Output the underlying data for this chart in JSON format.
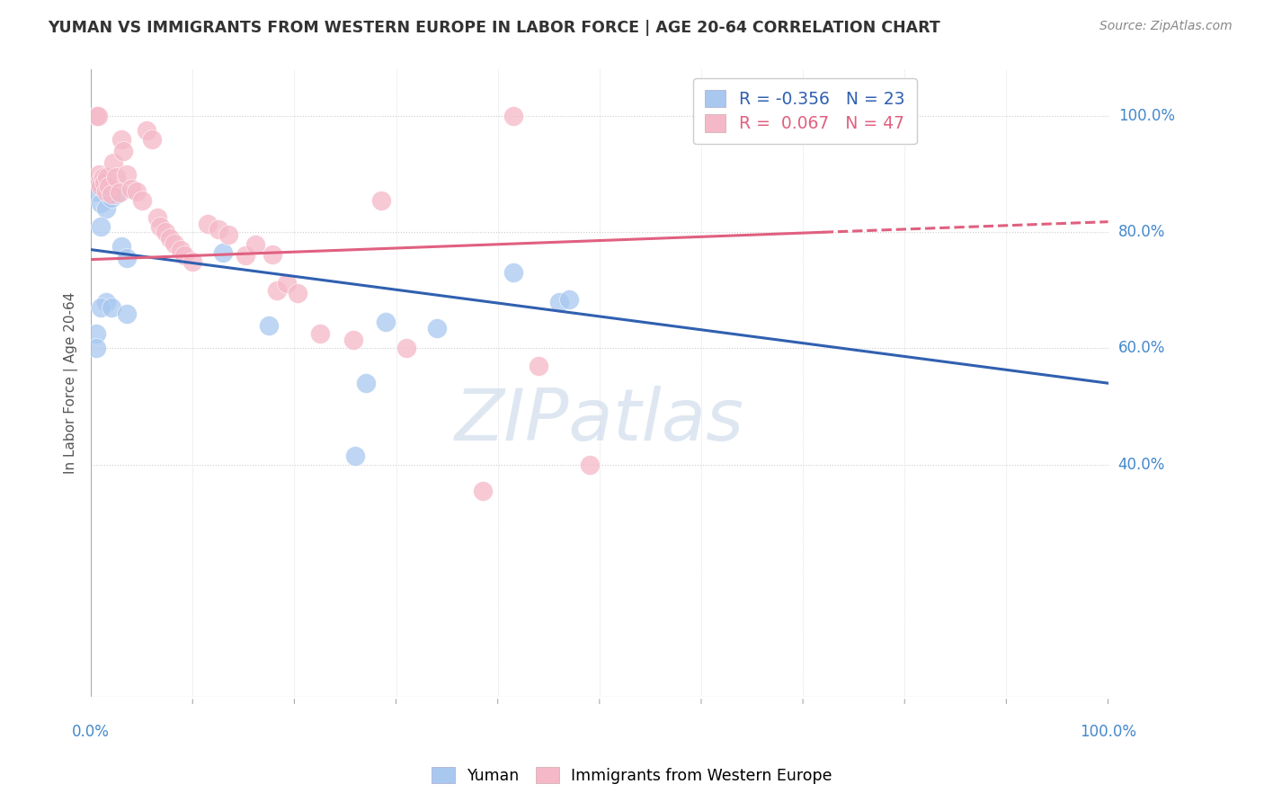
{
  "title": "YUMAN VS IMMIGRANTS FROM WESTERN EUROPE IN LABOR FORCE | AGE 20-64 CORRELATION CHART",
  "source": "Source: ZipAtlas.com",
  "ylabel": "In Labor Force | Age 20-64",
  "xlim": [
    0.0,
    1.0
  ],
  "ylim": [
    0.0,
    1.08
  ],
  "background_color": "#ffffff",
  "grid_color": "#cccccc",
  "watermark": "ZIPatlas",
  "legend_r_blue": "-0.356",
  "legend_n_blue": "23",
  "legend_r_pink": "0.067",
  "legend_n_pink": "47",
  "blue_color": "#a8c8f0",
  "pink_color": "#f5b8c8",
  "blue_line_color": "#3060b0",
  "pink_line_color": "#e06080",
  "blue_scatter_x": [
    0.005,
    0.01,
    0.015,
    0.02,
    0.025,
    0.01,
    0.015,
    0.005,
    0.005,
    0.01,
    0.02,
    0.03,
    0.035,
    0.035,
    0.13,
    0.175,
    0.26,
    0.29,
    0.34,
    0.415,
    0.46,
    0.47,
    0.27
  ],
  "blue_scatter_y": [
    0.87,
    0.85,
    0.84,
    0.86,
    0.865,
    0.81,
    0.68,
    0.625,
    0.6,
    0.67,
    0.67,
    0.775,
    0.755,
    0.66,
    0.765,
    0.64,
    0.415,
    0.645,
    0.635,
    0.73,
    0.68,
    0.685,
    0.54
  ],
  "pink_scatter_x": [
    0.005,
    0.007,
    0.008,
    0.009,
    0.01,
    0.012,
    0.013,
    0.015,
    0.016,
    0.018,
    0.02,
    0.022,
    0.025,
    0.028,
    0.03,
    0.032,
    0.035,
    0.04,
    0.045,
    0.05,
    0.055,
    0.06,
    0.065,
    0.068,
    0.073,
    0.078,
    0.082,
    0.088,
    0.092,
    0.1,
    0.115,
    0.125,
    0.135,
    0.152,
    0.162,
    0.178,
    0.183,
    0.193,
    0.203,
    0.225,
    0.258,
    0.285,
    0.31,
    0.385,
    0.415,
    0.44,
    0.49
  ],
  "pink_scatter_y": [
    1.0,
    1.0,
    0.9,
    0.885,
    0.88,
    0.895,
    0.885,
    0.87,
    0.895,
    0.88,
    0.865,
    0.92,
    0.895,
    0.868,
    0.96,
    0.94,
    0.9,
    0.875,
    0.87,
    0.855,
    0.975,
    0.96,
    0.825,
    0.81,
    0.8,
    0.79,
    0.78,
    0.77,
    0.76,
    0.75,
    0.815,
    0.805,
    0.795,
    0.76,
    0.778,
    0.762,
    0.7,
    0.712,
    0.695,
    0.625,
    0.615,
    0.855,
    0.6,
    0.355,
    1.0,
    0.57,
    0.4
  ],
  "blue_line_x0": 0.0,
  "blue_line_x1": 1.0,
  "blue_line_y0": 0.77,
  "blue_line_y1": 0.54,
  "pink_line_solid_x0": 0.0,
  "pink_line_solid_x1": 0.72,
  "pink_line_solid_y0": 0.753,
  "pink_line_solid_y1": 0.8,
  "pink_line_dash_x0": 0.72,
  "pink_line_dash_x1": 1.0,
  "pink_line_dash_y0": 0.8,
  "pink_line_dash_y1": 0.818,
  "ytick_positions": [
    0.4,
    0.6,
    0.8,
    1.0
  ],
  "ytick_labels": [
    "40.0%",
    "60.0%",
    "80.0%",
    "100.0%"
  ],
  "xtick_left_label": "0.0%",
  "xtick_right_label": "100.0%"
}
